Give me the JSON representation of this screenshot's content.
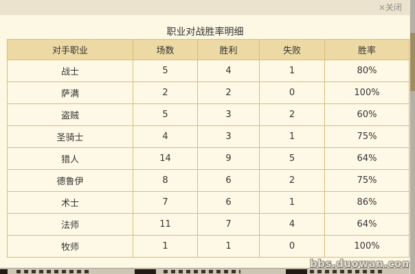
{
  "overlay": {
    "close_label": "×关闭",
    "close_icon": "×"
  },
  "title": "职业对战胜率明细",
  "table": {
    "headers": [
      "对手职业",
      "场数",
      "胜利",
      "失败",
      "胜率"
    ],
    "rows": [
      [
        "战士",
        "5",
        "4",
        "1",
        "80%"
      ],
      [
        "萨满",
        "2",
        "2",
        "0",
        "100%"
      ],
      [
        "盗贼",
        "5",
        "3",
        "2",
        "60%"
      ],
      [
        "圣骑士",
        "4",
        "3",
        "1",
        "75%"
      ],
      [
        "猎人",
        "14",
        "9",
        "5",
        "64%"
      ],
      [
        "德鲁伊",
        "8",
        "6",
        "2",
        "75%"
      ],
      [
        "术士",
        "7",
        "6",
        "1",
        "86%"
      ],
      [
        "法师",
        "11",
        "7",
        "4",
        "64%"
      ],
      [
        "牧师",
        "1",
        "1",
        "0",
        "100%"
      ]
    ]
  },
  "watermark": "bbs.duowan.com",
  "colors": {
    "page_background": "#fdf8e4",
    "topbar_background": "#ebe3cd",
    "header_background": "#edd9a3",
    "row_background": "#fdf9e6",
    "table_border": "#d9bc78",
    "text": "#333333",
    "close_text": "#8f8f8f",
    "scrollbar_track": "#b4b0a4",
    "scrollbar_thumb": "#9e8c62",
    "watermark_text": "#dfdacc"
  }
}
